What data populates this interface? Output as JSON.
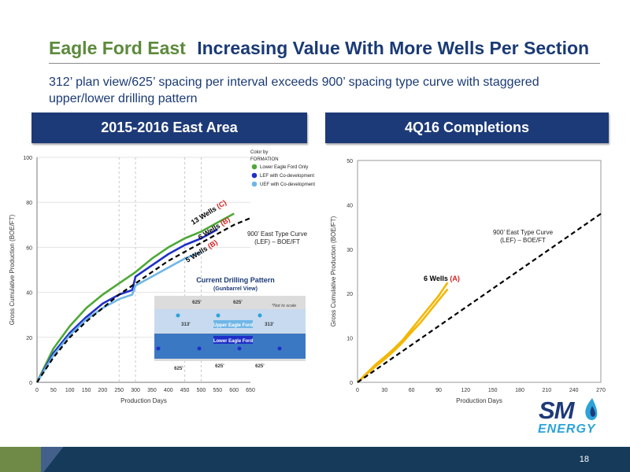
{
  "header": {
    "title_part1": "Eagle Ford East",
    "title_part2": "Increasing Value With More Wells Per Section",
    "subtitle": "312’ plan view/625’ spacing per interval exceeds 900’ spacing type curve with staggered upper/lower drilling pattern"
  },
  "panels": {
    "left_title": "2015-2016 East Area",
    "right_title": "4Q16 Completions"
  },
  "colors": {
    "navy": "#1d3a78",
    "green": "#4da836",
    "blue": "#1f2fc8",
    "lightblue": "#6fb6e6",
    "yellow": "#f2b705",
    "red": "#d81e1e"
  },
  "chart_data": [
    {
      "type": "line",
      "ylabel": "Gross Cumulative Production (BOE/FT)",
      "xlabel": "Production Days",
      "x_ticks": [
        "0",
        "50",
        "100",
        "150",
        "200",
        "250",
        "300",
        "350",
        "400",
        "450",
        "500",
        "550",
        "600",
        "650"
      ],
      "y_ticks": [
        "0",
        "20",
        "40",
        "60",
        "80",
        "100"
      ],
      "xlim": [
        0,
        650
      ],
      "ylim": [
        0,
        100
      ],
      "legend": {
        "title": "Color by FORMATION",
        "placement": "top-right",
        "items": [
          "Lower Eagle Ford Only",
          "LEF with Co-development",
          "UEF with Co-development"
        ]
      },
      "series": [
        {
          "name": "13 Wells",
          "tag": "(C)",
          "color": "#4da836",
          "x": [
            0,
            50,
            100,
            150,
            200,
            250,
            300,
            350,
            400,
            450,
            500,
            550,
            600
          ],
          "y": [
            0,
            15,
            25,
            33,
            39,
            44,
            49,
            55,
            60,
            64,
            67,
            71,
            75
          ]
        },
        {
          "name": "6 Wells",
          "tag": "(B)",
          "color": "#1f2fc8",
          "x": [
            0,
            50,
            100,
            150,
            200,
            250,
            290,
            300,
            350,
            400,
            450,
            500,
            550
          ],
          "y": [
            0,
            13,
            22,
            29,
            35,
            39,
            41,
            47,
            52,
            57,
            61,
            64,
            68
          ]
        },
        {
          "name": "5 Wells",
          "tag": "(B)",
          "color": "#6fb6e6",
          "x": [
            0,
            50,
            100,
            150,
            200,
            250,
            290,
            300,
            350,
            400,
            450,
            500
          ],
          "y": [
            0,
            12,
            21,
            28,
            33,
            37,
            39,
            43,
            47,
            51,
            55,
            58
          ]
        },
        {
          "name": "900’ East Type Curve",
          "color": "#000000",
          "dashed": true,
          "x": [
            0,
            50,
            100,
            150,
            200,
            250,
            300,
            350,
            400,
            450,
            500,
            550,
            600,
            650
          ],
          "y": [
            0,
            11,
            20,
            27,
            33,
            39,
            44,
            49,
            54,
            58,
            62,
            66,
            70,
            73
          ]
        }
      ],
      "annotations": {
        "type_curve_line1": "900’ East Type Curve",
        "type_curve_line2": "(LEF) – BOE/FT"
      },
      "inset": {
        "title": "Current Drilling Pattern",
        "subtitle": "(Gunbarrel View)",
        "note": "*Not to scale",
        "upper_label": "Upper Eagle Ford",
        "lower_label": "Lower Eagle Ford",
        "upper_dims": [
          "625’",
          "625’"
        ],
        "upper_side_dims": [
          "313’",
          "313’"
        ],
        "lower_dims": [
          "625’",
          "625’",
          "625’"
        ]
      }
    },
    {
      "type": "line",
      "ylabel": "Gross Cumulative Production (BOE/FT)",
      "xlabel": "Production Days",
      "x_ticks": [
        "0",
        "30",
        "60",
        "90",
        "120",
        "150",
        "180",
        "210",
        "240",
        "270"
      ],
      "y_ticks": [
        "0",
        "10",
        "20",
        "30",
        "40",
        "50"
      ],
      "xlim": [
        0,
        270
      ],
      "ylim": [
        0,
        50
      ],
      "series": [
        {
          "name": "6 Wells",
          "tag": "(A)",
          "color": "#f2b705",
          "x": [
            0,
            10,
            20,
            30,
            40,
            50,
            60,
            70,
            80,
            90,
            100
          ],
          "y": [
            0,
            2,
            4,
            5.7,
            7.5,
            9.5,
            12,
            14.5,
            17,
            19.5,
            22.5
          ]
        },
        {
          "name": "6 Wells",
          "tag": "(A)",
          "color": "#f2b705",
          "x": [
            0,
            10,
            20,
            30,
            40,
            50,
            60,
            70,
            80,
            90,
            100
          ],
          "y": [
            0,
            1.8,
            3.6,
            5.2,
            7,
            9,
            11.3,
            13.5,
            16,
            18.5,
            21
          ]
        },
        {
          "name": "900’ East Type Curve",
          "color": "#000000",
          "dashed": true,
          "x": [
            0,
            270
          ],
          "y": [
            0,
            38
          ]
        }
      ],
      "annotations": {
        "type_curve_line1": "900’ East Type Curve",
        "type_curve_line2": "(LEF) – BOE/FT"
      }
    }
  ],
  "logo": {
    "sm": "SM",
    "energy": "ENERGY"
  },
  "footer": {
    "page": "18"
  }
}
